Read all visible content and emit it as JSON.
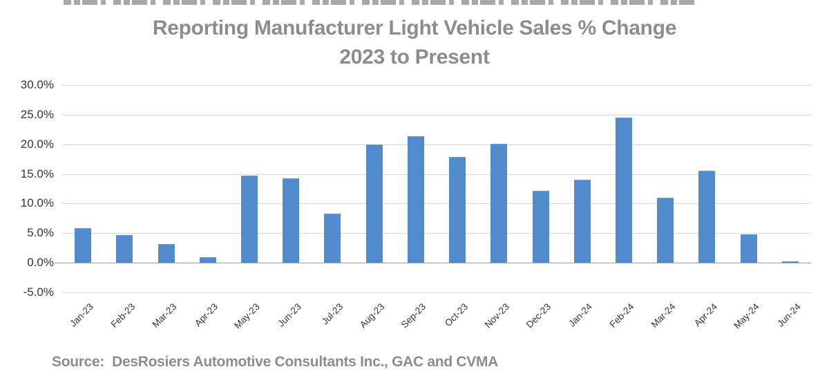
{
  "title": {
    "line1": "Reporting Manufacturer Light Vehicle Sales % Change",
    "line2": "2023 to Present",
    "color": "#8C8C8C"
  },
  "chart_data": {
    "type": "bar",
    "title": "Reporting Manufacturer Light Vehicle Sales % Change 2023 to Present",
    "categories": [
      "Jan-23",
      "Feb-23",
      "Mar-23",
      "Apr-23",
      "May-23",
      "Jun-23",
      "Jul-23",
      "Aug-23",
      "Sep-23",
      "Oct-23",
      "Nov-23",
      "Dec-23",
      "Jan-24",
      "Feb-24",
      "Mar-24",
      "Apr-24",
      "May-24",
      "Jun-24"
    ],
    "values": [
      5.9,
      4.7,
      3.2,
      0.9,
      14.7,
      14.2,
      8.3,
      20.0,
      21.4,
      17.9,
      20.1,
      12.1,
      14.0,
      24.5,
      11.0,
      15.5,
      4.8,
      0.2
    ],
    "xlabel": "",
    "ylabel": "",
    "ylim": [
      -5,
      30
    ],
    "yticks": [
      {
        "label": "30.0%",
        "value": 30
      },
      {
        "label": "25.0%",
        "value": 25
      },
      {
        "label": "20.0%",
        "value": 20
      },
      {
        "label": "15.0%",
        "value": 15
      },
      {
        "label": "10.0%",
        "value": 10
      },
      {
        "label": "5.0%",
        "value": 5
      },
      {
        "label": "0.0%",
        "value": 0
      },
      {
        "label": "-5.0%",
        "value": -5
      }
    ],
    "grid": true,
    "legend": false,
    "bar_color": "#528BCB",
    "gridline_color": "#D8D8D8",
    "axis_line_color": "#9C9C9C",
    "tick_label_color": "#333333"
  },
  "footer": {
    "source": "Source:  DesRosiers Automotive Consultants Inc., GAC and CVMA"
  }
}
